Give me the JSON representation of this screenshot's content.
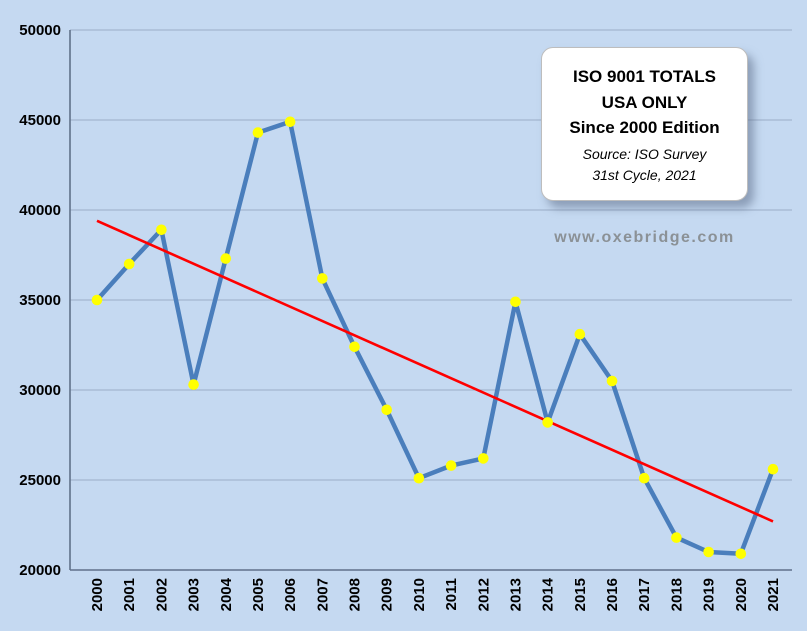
{
  "canvas": {
    "background": "#c5d9f1"
  },
  "title_box": {
    "line1": "ISO 9001 TOTALS",
    "line2": "USA ONLY",
    "line3": "Since 2000 Edition",
    "source_line1": "Source: ISO Survey",
    "source_line2": "31st Cycle, 2021"
  },
  "watermark": "www.oxebridge.com",
  "chart_data": {
    "type": "line",
    "title": "ISO 9001 TOTALS USA ONLY Since 2000 Edition",
    "x": [
      "2000",
      "2001",
      "2002",
      "2003",
      "2004",
      "2005",
      "2006",
      "2007",
      "2008",
      "2009",
      "2010",
      "2011",
      "2012",
      "2013",
      "2014",
      "2015",
      "2016",
      "2017",
      "2018",
      "2019",
      "2020",
      "2021"
    ],
    "series": [
      {
        "name": "ISO 9001 TOTALS USA",
        "color": "#4a7ebc",
        "marker_color": "#ffff00",
        "values": [
          35000,
          37000,
          38900,
          30300,
          37300,
          44300,
          44900,
          36200,
          32400,
          28900,
          25100,
          25800,
          26200,
          34900,
          28200,
          33100,
          30500,
          25100,
          21800,
          21000,
          20900,
          25600
        ]
      }
    ],
    "trendline": {
      "type": "linear",
      "color": "#ff0000",
      "start_value": 39400,
      "end_value": 22700
    },
    "ylim": [
      20000,
      50000
    ],
    "ytick_step": 5000,
    "yticks": [
      "20000",
      "25000",
      "30000",
      "35000",
      "40000",
      "45000",
      "50000"
    ],
    "grid": true,
    "legend": "none",
    "gridline_color": "#9badc7",
    "axis_color": "#60718a",
    "tick_label_color": "#000000"
  }
}
